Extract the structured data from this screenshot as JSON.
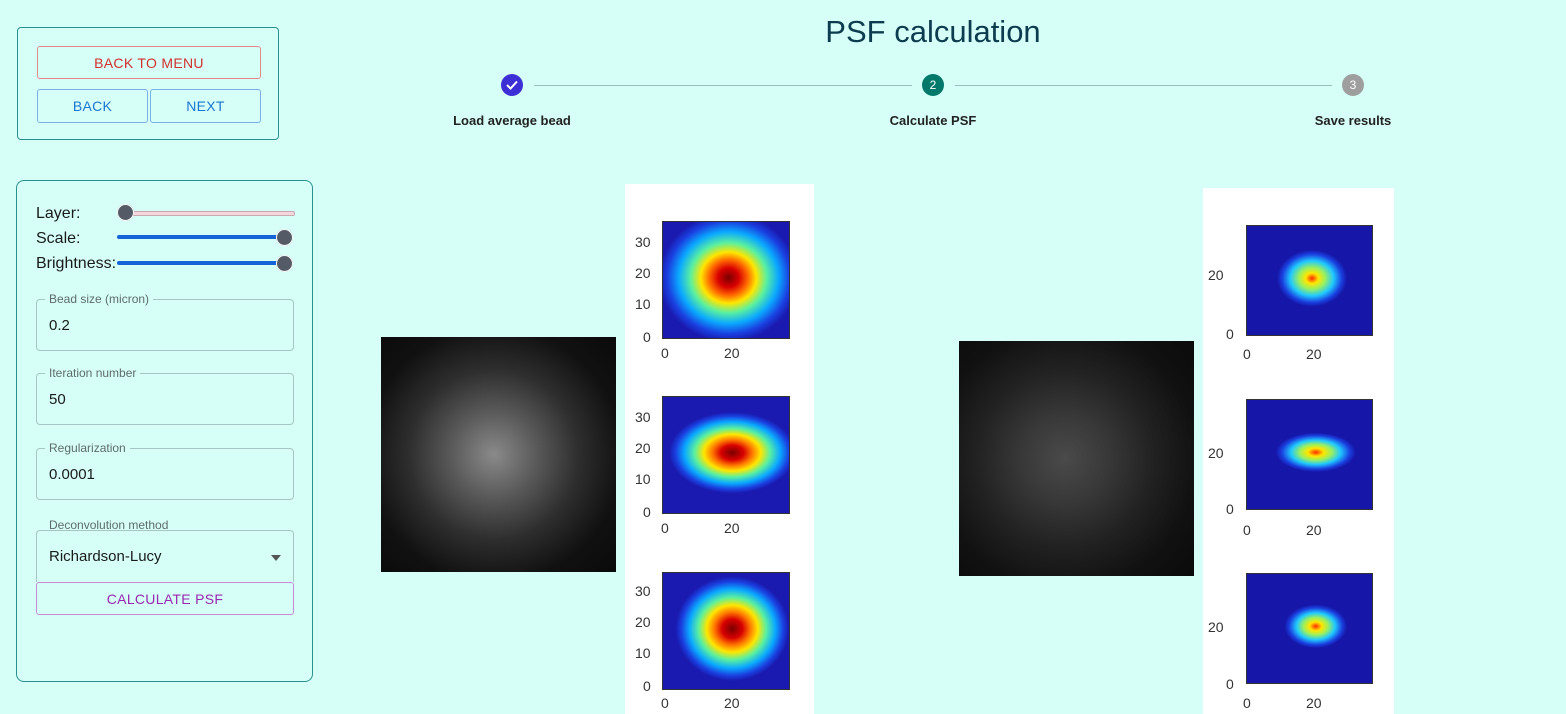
{
  "nav": {
    "back_to_menu": "BACK TO MENU",
    "back": "BACK",
    "next": "NEXT"
  },
  "controls": {
    "layer_label": "Layer:",
    "layer_value": 0,
    "scale_label": "Scale:",
    "scale_value": 1,
    "brightness_label": "Brightness:",
    "brightness_value": 1,
    "bead_size": {
      "label": "Bead size (micron)",
      "value": "0.2"
    },
    "iteration_number": {
      "label": "Iteration number",
      "value": "50"
    },
    "regularization": {
      "label": "Regularization",
      "value": "0.0001"
    },
    "deconvolution_method": {
      "label": "Deconvolution method",
      "value": "Richardson-Lucy"
    },
    "calculate_button": "CALCULATE PSF"
  },
  "page": {
    "title": "PSF calculation"
  },
  "stepper": {
    "steps": [
      {
        "label": "Load average bead",
        "number": "1",
        "state": "completed"
      },
      {
        "label": "Calculate PSF",
        "number": "2",
        "state": "active"
      },
      {
        "label": "Save results",
        "number": "3",
        "state": "pending"
      }
    ]
  },
  "colors": {
    "background": "#d6fff7",
    "border": "#2a8f8f",
    "step_completed": "#3d2fd6",
    "step_active": "#00796b",
    "step_pending": "#9e9e9e",
    "slider_fill": "#1565d8"
  },
  "plots": {
    "left": {
      "ticks_y": [
        "30",
        "20",
        "10",
        "0"
      ],
      "ticks_x": [
        "0",
        "20"
      ]
    },
    "right": {
      "ticks_y": [
        "20",
        "0"
      ],
      "ticks_x": [
        "0",
        "20"
      ]
    }
  }
}
